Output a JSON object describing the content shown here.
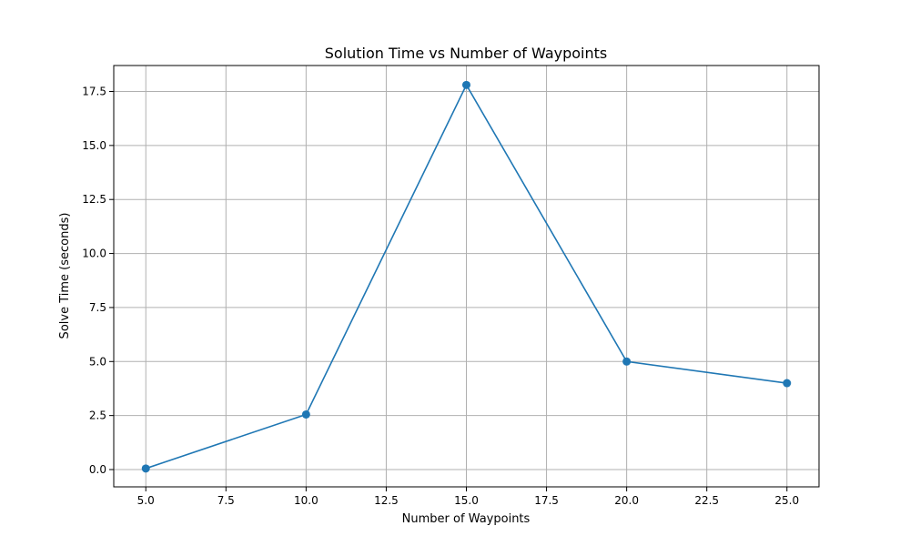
{
  "chart_data": {
    "type": "line",
    "title": "Solution Time vs Number of Waypoints",
    "xlabel": "Number of Waypoints",
    "ylabel": "Solve Time (seconds)",
    "x": [
      5,
      10,
      15,
      20,
      25
    ],
    "series": [
      {
        "values": [
          0.05,
          2.55,
          17.8,
          5.0,
          4.0
        ]
      }
    ],
    "xlim": [
      4.0,
      26.0
    ],
    "ylim": [
      -0.8,
      18.7
    ],
    "xticks": [
      5,
      7.5,
      10,
      12.5,
      15,
      17.5,
      20,
      22.5,
      25
    ],
    "xtick_labels": [
      "5.0",
      "7.5",
      "10.0",
      "12.5",
      "15.0",
      "17.5",
      "20.0",
      "22.5",
      "25.0"
    ],
    "yticks": [
      0,
      2.5,
      5,
      7.5,
      10,
      12.5,
      15,
      17.5
    ],
    "ytick_labels": [
      "0.0",
      "2.5",
      "5.0",
      "7.5",
      "10.0",
      "12.5",
      "15.0",
      "17.5"
    ],
    "grid": true,
    "line_color": "#1f77b4",
    "marker": "circle"
  }
}
